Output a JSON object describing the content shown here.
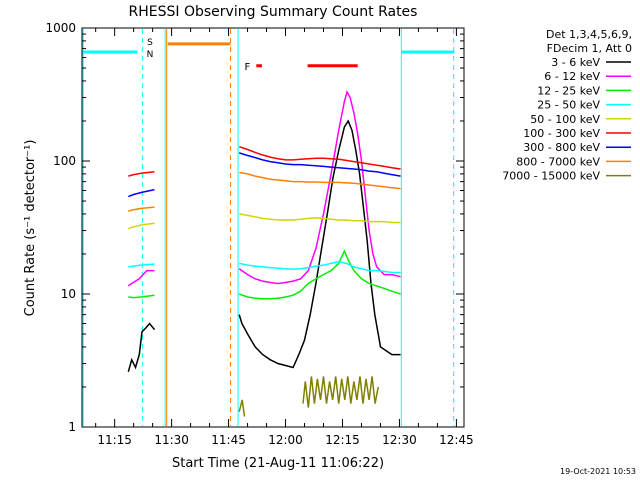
{
  "chart_data": {
    "type": "line",
    "title": "RHESSI Observing Summary Count Rates",
    "xlabel": "Start Time (21-Aug-11 11:06:22)",
    "ylabel": "Count Rate (s⁻¹ detector⁻¹)",
    "x_unit": "minutes after 11:00 UT",
    "xlim": [
      6.4,
      107
    ],
    "ylim": [
      1,
      1000
    ],
    "y_scale": "log",
    "grid": false,
    "x_ticks": [
      {
        "v": 15,
        "label": "11:15"
      },
      {
        "v": 30,
        "label": "11:30"
      },
      {
        "v": 45,
        "label": "11:45"
      },
      {
        "v": 60,
        "label": "12:00"
      },
      {
        "v": 75,
        "label": "12:15"
      },
      {
        "v": 90,
        "label": "12:30"
      },
      {
        "v": 105,
        "label": "12:45"
      }
    ],
    "y_ticks": [
      {
        "v": 1,
        "label": "1"
      },
      {
        "v": 10,
        "label": "10"
      },
      {
        "v": 100,
        "label": "100"
      },
      {
        "v": 1000,
        "label": "1000"
      }
    ],
    "legend": {
      "placement": "right",
      "header": [
        "Det 1,3,4,5,6,9,",
        "FDecim 1, Att 0"
      ]
    },
    "series": [
      {
        "name": "3 - 6 keV",
        "color": "#000000",
        "data": [
          [
            18.6,
            2.6
          ],
          [
            19.5,
            3.2
          ],
          [
            20.5,
            2.8
          ],
          [
            21.5,
            3.5
          ],
          [
            22.2,
            5.2
          ],
          [
            23.3,
            5.6
          ],
          [
            24.2,
            6
          ],
          [
            25.5,
            5.4
          ],
          [
            47.8,
            7
          ],
          [
            48.5,
            6
          ],
          [
            50,
            5
          ],
          [
            52,
            4
          ],
          [
            54,
            3.5
          ],
          [
            56,
            3.2
          ],
          [
            58,
            3
          ],
          [
            60,
            2.9
          ],
          [
            62,
            2.8
          ],
          [
            63.5,
            3.5
          ],
          [
            65,
            4.5
          ],
          [
            66.5,
            7
          ],
          [
            68,
            12
          ],
          [
            69.5,
            22
          ],
          [
            71,
            40
          ],
          [
            72.5,
            75
          ],
          [
            74,
            120
          ],
          [
            75.5,
            180
          ],
          [
            76.5,
            200
          ],
          [
            77.5,
            170
          ],
          [
            78.5,
            120
          ],
          [
            79.5,
            80
          ],
          [
            80.5,
            45
          ],
          [
            81.5,
            25
          ],
          [
            82.5,
            12
          ],
          [
            83.5,
            7
          ],
          [
            85,
            4
          ],
          [
            88,
            3.5
          ],
          [
            90.3,
            3.5
          ]
        ]
      },
      {
        "name": "6 - 12 keV",
        "color": "#ff00ff",
        "data": [
          [
            18.6,
            11.5
          ],
          [
            19.5,
            12
          ],
          [
            20.5,
            12.5
          ],
          [
            21.5,
            13
          ],
          [
            22.5,
            14
          ],
          [
            23.5,
            15
          ],
          [
            25.5,
            15
          ],
          [
            47.8,
            15.5
          ],
          [
            50,
            14
          ],
          [
            52,
            13
          ],
          [
            54,
            12.5
          ],
          [
            56,
            12.2
          ],
          [
            58,
            12
          ],
          [
            60,
            12.2
          ],
          [
            62,
            12.5
          ],
          [
            64,
            13
          ],
          [
            66,
            15
          ],
          [
            68,
            22
          ],
          [
            70,
            40
          ],
          [
            72,
            80
          ],
          [
            74,
            170
          ],
          [
            75.5,
            280
          ],
          [
            76.2,
            330
          ],
          [
            77,
            300
          ],
          [
            78,
            230
          ],
          [
            79,
            160
          ],
          [
            80,
            100
          ],
          [
            81,
            55
          ],
          [
            82,
            30
          ],
          [
            83,
            20
          ],
          [
            84,
            16
          ],
          [
            86,
            14
          ],
          [
            88,
            14
          ],
          [
            90.3,
            13.5
          ]
        ]
      },
      {
        "name": "12 - 25 keV",
        "color": "#00ee00",
        "data": [
          [
            18.6,
            9.5
          ],
          [
            20,
            9.4
          ],
          [
            22,
            9.5
          ],
          [
            25.5,
            9.8
          ],
          [
            47.8,
            10
          ],
          [
            50,
            9.5
          ],
          [
            52,
            9.3
          ],
          [
            54,
            9.2
          ],
          [
            56,
            9.2
          ],
          [
            58,
            9.3
          ],
          [
            60,
            9.5
          ],
          [
            62,
            9.8
          ],
          [
            64,
            10.5
          ],
          [
            66,
            12
          ],
          [
            68,
            13
          ],
          [
            70,
            14
          ],
          [
            72,
            15
          ],
          [
            74,
            17
          ],
          [
            75.5,
            21
          ],
          [
            76.5,
            18
          ],
          [
            78,
            15
          ],
          [
            80,
            13
          ],
          [
            82,
            12
          ],
          [
            84,
            11.5
          ],
          [
            86,
            11
          ],
          [
            88,
            10.5
          ],
          [
            90.3,
            10
          ]
        ]
      },
      {
        "name": "25 - 50 keV",
        "color": "#00ffff",
        "data": [
          [
            18.6,
            16
          ],
          [
            20,
            16.2
          ],
          [
            22,
            16.5
          ],
          [
            25.5,
            16.8
          ],
          [
            47.8,
            17
          ],
          [
            50,
            16.5
          ],
          [
            52,
            16.2
          ],
          [
            54,
            16
          ],
          [
            56,
            15.8
          ],
          [
            58,
            15.6
          ],
          [
            60,
            15.5
          ],
          [
            62,
            15.4
          ],
          [
            64,
            15.5
          ],
          [
            66,
            15.8
          ],
          [
            68,
            16.2
          ],
          [
            70,
            16.5
          ],
          [
            72,
            17
          ],
          [
            74,
            17.5
          ],
          [
            76,
            17
          ],
          [
            78,
            16
          ],
          [
            80,
            15.5
          ],
          [
            82,
            15
          ],
          [
            84,
            15
          ],
          [
            86,
            14.8
          ],
          [
            88,
            14.5
          ],
          [
            90.3,
            14.5
          ]
        ]
      },
      {
        "name": "50 - 100 keV",
        "color": "#d4d400",
        "data": [
          [
            18.6,
            31
          ],
          [
            20,
            32
          ],
          [
            22,
            33
          ],
          [
            25.5,
            34
          ],
          [
            47.8,
            40
          ],
          [
            50,
            39
          ],
          [
            52,
            38
          ],
          [
            54,
            37
          ],
          [
            56,
            36.5
          ],
          [
            58,
            36
          ],
          [
            60,
            36
          ],
          [
            62,
            36
          ],
          [
            64,
            36.5
          ],
          [
            66,
            37
          ],
          [
            68,
            37.5
          ],
          [
            70,
            37
          ],
          [
            72,
            36.5
          ],
          [
            74,
            36
          ],
          [
            76,
            36
          ],
          [
            78,
            35.5
          ],
          [
            80,
            35.5
          ],
          [
            82,
            35
          ],
          [
            84,
            35
          ],
          [
            86,
            35
          ],
          [
            88,
            34.5
          ],
          [
            90.3,
            34.5
          ]
        ]
      },
      {
        "name": "100 - 300 keV",
        "color": "#ff0000",
        "data": [
          [
            18.6,
            77
          ],
          [
            20,
            79
          ],
          [
            22,
            81
          ],
          [
            25.5,
            83
          ],
          [
            47.8,
            128
          ],
          [
            50,
            122
          ],
          [
            52,
            116
          ],
          [
            54,
            111
          ],
          [
            56,
            107
          ],
          [
            58,
            104
          ],
          [
            60,
            102
          ],
          [
            62,
            102
          ],
          [
            64,
            103
          ],
          [
            66,
            104
          ],
          [
            68,
            105
          ],
          [
            70,
            105
          ],
          [
            72,
            104
          ],
          [
            74,
            103
          ],
          [
            76,
            101
          ],
          [
            78,
            99
          ],
          [
            80,
            97
          ],
          [
            82,
            95
          ],
          [
            84,
            93
          ],
          [
            86,
            91
          ],
          [
            88,
            89
          ],
          [
            90.3,
            87
          ]
        ]
      },
      {
        "name": "300 - 800 keV",
        "color": "#0000ff",
        "data": [
          [
            18.6,
            54
          ],
          [
            20,
            56
          ],
          [
            22,
            58
          ],
          [
            25.5,
            61
          ],
          [
            47.8,
            115
          ],
          [
            50,
            110
          ],
          [
            52,
            106
          ],
          [
            54,
            102
          ],
          [
            56,
            99
          ],
          [
            58,
            97
          ],
          [
            60,
            95
          ],
          [
            62,
            94
          ],
          [
            64,
            94
          ],
          [
            66,
            93
          ],
          [
            68,
            92
          ],
          [
            70,
            91
          ],
          [
            72,
            90
          ],
          [
            74,
            89
          ],
          [
            76,
            88
          ],
          [
            78,
            87
          ],
          [
            80,
            86
          ],
          [
            82,
            84
          ],
          [
            84,
            83
          ],
          [
            86,
            81
          ],
          [
            88,
            79
          ],
          [
            90.3,
            77
          ]
        ]
      },
      {
        "name": "800 - 7000 keV",
        "color": "#ff8000",
        "data": [
          [
            18.6,
            42
          ],
          [
            20,
            43
          ],
          [
            22,
            44
          ],
          [
            25.5,
            45
          ],
          [
            47.8,
            82
          ],
          [
            50,
            80
          ],
          [
            52,
            77
          ],
          [
            54,
            75
          ],
          [
            56,
            73
          ],
          [
            58,
            72
          ],
          [
            60,
            71
          ],
          [
            62,
            70
          ],
          [
            64,
            70
          ],
          [
            66,
            69.5
          ],
          [
            68,
            69.5
          ],
          [
            70,
            69
          ],
          [
            72,
            69
          ],
          [
            74,
            69
          ],
          [
            76,
            68.5
          ],
          [
            78,
            68
          ],
          [
            80,
            67
          ],
          [
            82,
            66
          ],
          [
            84,
            65
          ],
          [
            86,
            64
          ],
          [
            88,
            63
          ],
          [
            90.3,
            62
          ]
        ]
      },
      {
        "name": "7000 - 15000 keV",
        "color": "#808000",
        "data": [
          [
            47.8,
            1.3
          ],
          [
            48.6,
            1.6
          ],
          [
            49.2,
            1.2
          ],
          [
            64.6,
            1.5
          ],
          [
            65.2,
            2.2
          ],
          [
            66,
            1.4
          ],
          [
            66.8,
            2.4
          ],
          [
            67.6,
            1.5
          ],
          [
            68.4,
            2.3
          ],
          [
            69.2,
            1.6
          ],
          [
            70,
            2.4
          ],
          [
            70.8,
            1.5
          ],
          [
            71.6,
            2.2
          ],
          [
            72.4,
            1.6
          ],
          [
            73.2,
            2.4
          ],
          [
            74,
            1.5
          ],
          [
            74.8,
            2.3
          ],
          [
            75.6,
            1.6
          ],
          [
            76.4,
            2.4
          ],
          [
            77.2,
            1.5
          ],
          [
            78,
            2.2
          ],
          [
            78.8,
            1.6
          ],
          [
            79.6,
            2.4
          ],
          [
            80.4,
            1.5
          ],
          [
            81.2,
            2.3
          ],
          [
            82,
            1.6
          ],
          [
            82.8,
            2.4
          ],
          [
            83.6,
            1.5
          ],
          [
            84.4,
            2
          ]
        ]
      }
    ],
    "flag_bars": [
      {
        "label": "",
        "color": "#00ffff",
        "x": [
          6.5,
          21
        ],
        "y": 660
      },
      {
        "label": "",
        "color": "#00ffff",
        "x": [
          90.5,
          104.5
        ],
        "y": 660
      },
      {
        "label": "",
        "color": "#ff8000",
        "x": [
          29,
          45.5
        ],
        "y": 760
      },
      {
        "label": "F",
        "color": "#ff0000",
        "x": [
          52.3,
          53.8
        ],
        "y": 520
      },
      {
        "label": "",
        "color": "#ff0000",
        "x": [
          65.8,
          79
        ],
        "y": 520
      }
    ],
    "bar_labels": [
      {
        "text": "S",
        "color": "#ff8000",
        "x": 24.3,
        "y": 800
      },
      {
        "text": "N",
        "color": "#00ffff",
        "x": 24.3,
        "y": 650
      }
    ],
    "vertical_lines": [
      {
        "x": 6.7,
        "color": "#00ffff",
        "dash": false
      },
      {
        "x": 22.3,
        "color": "#00ffff",
        "dash": true
      },
      {
        "x": 28.3,
        "color": "#00ffff",
        "dash": false
      },
      {
        "x": 28.7,
        "color": "#ff8000",
        "dash": false
      },
      {
        "x": 45.5,
        "color": "#ff8000",
        "dash": true
      },
      {
        "x": 47.5,
        "color": "#00ffff",
        "dash": false
      },
      {
        "x": 90.5,
        "color": "#00ffff",
        "dash": false
      },
      {
        "x": 104.3,
        "color": "#00ffff",
        "dash": true
      }
    ],
    "footer_date": "19-Oct-2021 10:53"
  }
}
